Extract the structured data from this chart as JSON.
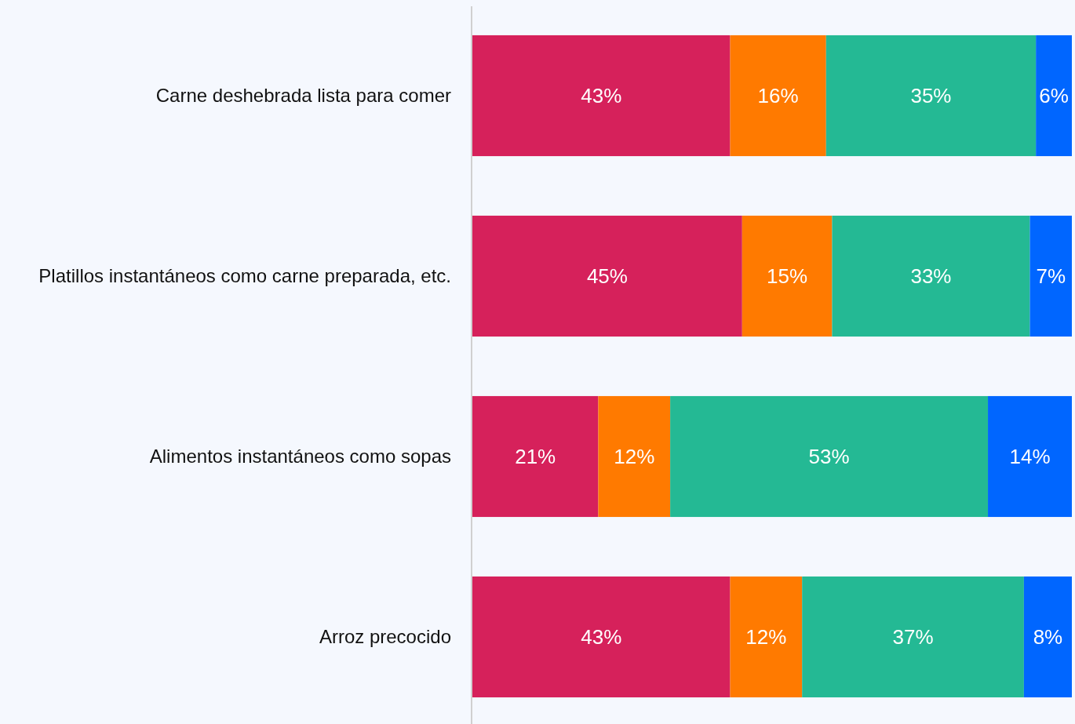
{
  "chart_data": {
    "type": "bar",
    "orientation": "horizontal",
    "stacked": true,
    "tick_labels": "y",
    "xlim": [
      0,
      100
    ],
    "categories": [
      "Carne deshebrada lista para comer",
      "Platillos instantáneos como carne preparada, etc.",
      "Alimentos instantáneos como sopas",
      "Arroz precocido"
    ],
    "series": [
      {
        "color": "#d6215b",
        "values": [
          43,
          45,
          21,
          43
        ],
        "value_labels": [
          "43%",
          "45%",
          "21%",
          "43%"
        ]
      },
      {
        "color": "#ff7a00",
        "values": [
          16,
          15,
          12,
          12
        ],
        "value_labels": [
          "16%",
          "15%",
          "12%",
          "12%"
        ]
      },
      {
        "color": "#24b994",
        "values": [
          35,
          33,
          53,
          37
        ],
        "value_labels": [
          "35%",
          "33%",
          "53%",
          "37%"
        ]
      },
      {
        "color": "#0066ff",
        "values": [
          6,
          7,
          14,
          8
        ],
        "value_labels": [
          "6%",
          "7%",
          "14%",
          "8%"
        ]
      }
    ]
  }
}
